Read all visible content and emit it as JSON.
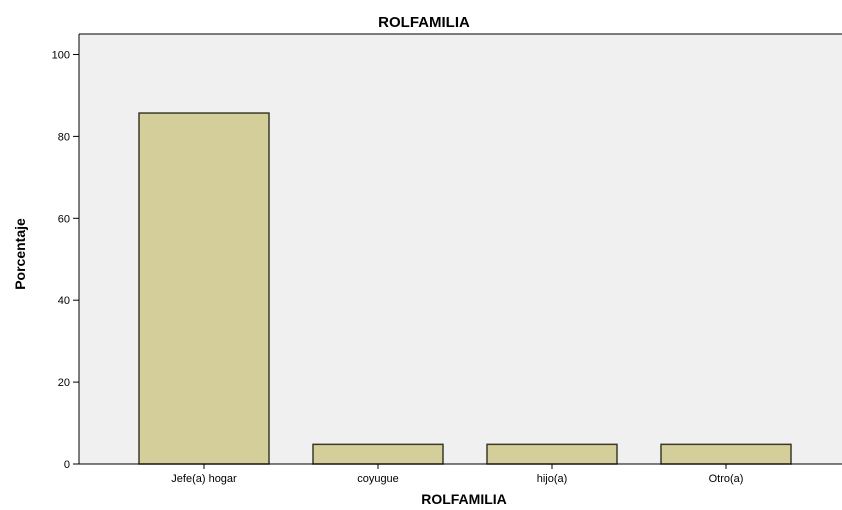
{
  "chart_data": {
    "type": "bar",
    "title": "ROLFAMILIA",
    "xlabel": "ROLFAMILIA",
    "ylabel": "Porcentaje",
    "categories": [
      "Jefe(a) hogar",
      "coyugue",
      "hijo(a)",
      "Otro(a)"
    ],
    "values": [
      85.7,
      4.8,
      4.8,
      4.8
    ],
    "ylim": [
      0,
      105
    ],
    "yticks": [
      0,
      20,
      40,
      60,
      80,
      100
    ],
    "grid": false,
    "legend": "none",
    "colors": {
      "bar_fill": "#d4cf9a",
      "bar_stroke": "#3a3a2a",
      "plot_background": "#f0f0f0",
      "frame": "#000000"
    }
  }
}
